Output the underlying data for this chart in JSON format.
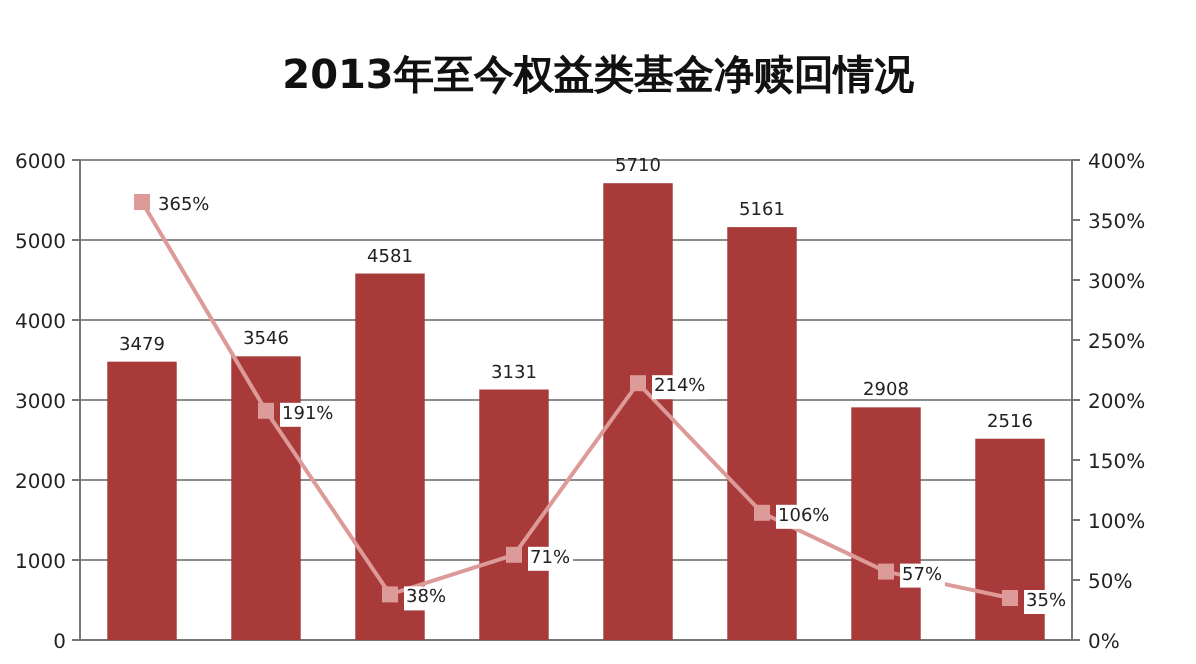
{
  "chart_data": {
    "type": "bar",
    "title": "2013年至今权益类基金净赎回情况",
    "categories": [
      null,
      null,
      null,
      null,
      null,
      null,
      null,
      null
    ],
    "series": [
      {
        "color": "#a83a3a",
        "values": [
          3479,
          3546,
          4581,
          3131,
          5710,
          5161,
          2908,
          2516
        ]
      },
      {
        "type": "line",
        "axis": "y2",
        "color": "#dc9a98",
        "marker": "square",
        "values": [
          365,
          191,
          38,
          71,
          214,
          106,
          57,
          35
        ],
        "value_labels": [
          "365%",
          "191%",
          "38%",
          "71%",
          "214%",
          "106%",
          "57%",
          "35%"
        ]
      }
    ],
    "data_labels": true,
    "ylim": [
      0,
      6000
    ],
    "yticks": [
      0,
      1000,
      2000,
      3000,
      4000,
      5000,
      6000
    ],
    "y2lim": [
      0,
      400
    ],
    "y2ticks": [
      {
        "value": 0,
        "label": "0%"
      },
      {
        "value": 50,
        "label": "50%"
      },
      {
        "value": 100,
        "label": "100%"
      },
      {
        "value": 150,
        "label": "150%"
      },
      {
        "value": 200,
        "label": "200%"
      },
      {
        "value": 250,
        "label": "250%"
      },
      {
        "value": 300,
        "label": "300%"
      },
      {
        "value": 350,
        "label": "350%"
      },
      {
        "value": 400,
        "label": "400%"
      }
    ],
    "grid": "y",
    "tick_labels": "y"
  }
}
